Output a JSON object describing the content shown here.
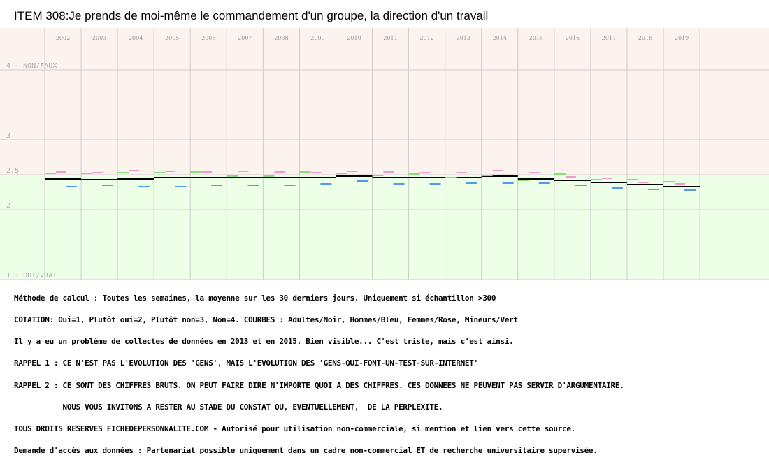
{
  "title": "ITEM 308:Je prends de moi-même le commandement d'un groupe, la direction d'un travail",
  "chart_data": {
    "type": "line",
    "categories": [
      "2002",
      "2003",
      "2004",
      "2005",
      "2006",
      "2007",
      "2008",
      "2009",
      "2010",
      "2011",
      "2012",
      "2013",
      "2014",
      "2015",
      "2016",
      "2017",
      "2018",
      "2019"
    ],
    "y_ticks": [
      {
        "value": 4,
        "label": "4 - NON/FAUX"
      },
      {
        "value": 3,
        "label": "3"
      },
      {
        "value": 2.5,
        "label": "2.5"
      },
      {
        "value": 2,
        "label": "2"
      },
      {
        "value": 1,
        "label": "1 - OUI/VRAI"
      }
    ],
    "ylim": [
      1,
      4
    ],
    "grid": true,
    "band_colors": {
      "upper": "#fdf3ee",
      "lower": "#eeffe8",
      "band_split": 2.5
    },
    "series": [
      {
        "name": "Adultes",
        "color": "#000000",
        "values": [
          2.44,
          2.43,
          2.44,
          2.46,
          2.46,
          2.46,
          2.46,
          2.46,
          2.48,
          2.46,
          2.46,
          2.46,
          2.48,
          2.44,
          2.42,
          2.39,
          2.36,
          2.33
        ]
      },
      {
        "name": "Hommes",
        "color": "#5599ee",
        "values": [
          2.33,
          2.35,
          2.33,
          2.33,
          2.35,
          2.35,
          2.35,
          2.37,
          2.41,
          2.37,
          2.37,
          2.38,
          2.38,
          2.38,
          2.35,
          2.31,
          2.29,
          2.28
        ]
      },
      {
        "name": "Femmes",
        "color": "#ee99cc",
        "values": [
          2.54,
          2.53,
          2.56,
          2.55,
          2.54,
          2.55,
          2.54,
          2.53,
          2.55,
          2.54,
          2.53,
          2.53,
          2.56,
          2.53,
          2.47,
          2.45,
          2.39,
          2.37
        ]
      },
      {
        "name": "Mineurs",
        "color": "#88dd77",
        "values": [
          2.52,
          2.52,
          2.53,
          2.53,
          2.54,
          2.48,
          2.48,
          2.54,
          2.52,
          2.49,
          2.51,
          2.46,
          2.49,
          2.42,
          2.51,
          2.43,
          2.43,
          2.4
        ]
      }
    ]
  },
  "notes": [
    "Méthode de calcul : Toutes les semaines, la moyenne sur les 30 derniers jours. Uniquement si échantillon >300",
    "COTATION: Oui=1, Plutôt oui=2, Plutôt non=3, Non=4. COURBES : Adultes/Noir, Hommes/Bleu, Femmes/Rose, Mineurs/Vert",
    "Il y a eu un problème de collectes de données en 2013 et en 2015. Bien visible... C'est triste, mais c'est ainsi.",
    "RAPPEL 1 : CE N'EST PAS L'EVOLUTION DES 'GENS', MAIS L'EVOLUTION DES 'GENS-QUI-FONT-UN-TEST-SUR-INTERNET'",
    "RAPPEL 2 : CE SONT DES CHIFFRES BRUTS. ON PEUT FAIRE DIRE N'IMPORTE QUOI A DES CHIFFRES. CES DONNEES NE PEUVENT PAS SERVIR D'ARGUMENTAIRE.",
    "           NOUS VOUS INVITONS A RESTER AU STADE DU CONSTAT OU, EVENTUELLEMENT,  DE LA PERPLEXITE.",
    "TOUS DROITS RESERVES FICHEDEPERSONNALITE.COM - Autorisé pour utilisation non-commerciale, si mention et lien vers cette source.",
    "Demande d'accès aux données : Partenariat possible uniquement dans un cadre non-commercial ET de recherche universitaire supervisée."
  ]
}
